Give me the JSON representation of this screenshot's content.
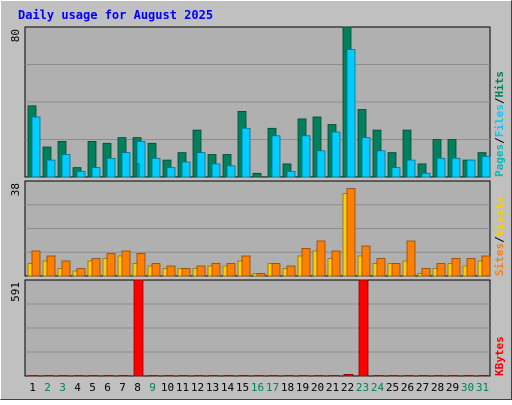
{
  "colors": {
    "background": "#c0c0c0",
    "panel": "#b0b0b0",
    "grid": "#8c8c8c",
    "title": "#0000ff",
    "hits": "#00805c",
    "files": "#00ccff",
    "pages": "#00bcbc",
    "visits": "#ffcc00",
    "sites": "#ff8000",
    "kbytes": "#ff0000",
    "weekday_label": "#000000",
    "weekend_label": "#00805c"
  },
  "chart_data": {
    "type": "bar",
    "title": "Daily usage for August 2025",
    "categories": [
      "1",
      "2",
      "3",
      "4",
      "5",
      "6",
      "7",
      "8",
      "9",
      "10",
      "11",
      "12",
      "13",
      "14",
      "15",
      "16",
      "17",
      "18",
      "19",
      "20",
      "21",
      "22",
      "23",
      "24",
      "25",
      "26",
      "27",
      "28",
      "29",
      "30",
      "31"
    ],
    "weekend_days": [
      "2",
      "3",
      "9",
      "16",
      "17",
      "23",
      "24",
      "30",
      "31"
    ],
    "panels": [
      {
        "id": "hits-files-pages",
        "max_label": "80",
        "ylim": [
          0,
          80
        ],
        "legend": [
          "Pages",
          "Files",
          "Hits"
        ],
        "series": [
          {
            "name": "Hits",
            "values": [
              38,
              16,
              19,
              5,
              19,
              18,
              21,
              21,
              18,
              9,
              13,
              25,
              12,
              12,
              35,
              2,
              26,
              7,
              31,
              32,
              28,
              80,
              36,
              25,
              13,
              25,
              7,
              20,
              20,
              9,
              13
            ]
          },
          {
            "name": "Files",
            "values": [
              32,
              9,
              12,
              3,
              5,
              10,
              13,
              19,
              10,
              5,
              8,
              13,
              7,
              6,
              26,
              0,
              22,
              3,
              22,
              14,
              24,
              68,
              21,
              14,
              5,
              9,
              2,
              10,
              10,
              9,
              11
            ]
          },
          {
            "name": "Pages",
            "values": [
              0,
              0,
              0,
              0,
              0,
              0,
              0,
              7,
              0,
              0,
              0,
              0,
              0,
              0,
              0,
              0,
              0,
              0,
              0,
              0,
              0,
              0,
              0,
              0,
              0,
              0,
              0,
              0,
              0,
              0,
              0
            ]
          }
        ]
      },
      {
        "id": "visits-sites",
        "max_label": "38",
        "ylim": [
          0,
          38
        ],
        "legend": [
          "Sites",
          "Visits"
        ],
        "series": [
          {
            "name": "Visits",
            "values": [
              5,
              6,
              3,
              2,
              6,
              7,
              8,
              5,
              4,
              3,
              3,
              3,
              4,
              4,
              6,
              1,
              5,
              3,
              8,
              10,
              7,
              33,
              8,
              5,
              5,
              6,
              1,
              3,
              5,
              4,
              6
            ]
          },
          {
            "name": "Sites",
            "values": [
              10,
              8,
              6,
              3,
              7,
              9,
              10,
              9,
              5,
              4,
              3,
              4,
              5,
              5,
              8,
              1,
              5,
              4,
              11,
              14,
              10,
              35,
              12,
              7,
              5,
              14,
              3,
              5,
              7,
              7,
              8
            ]
          }
        ]
      },
      {
        "id": "kbytes",
        "max_label": "591",
        "ylim": [
          0,
          591
        ],
        "legend": [
          "KBytes"
        ],
        "series": [
          {
            "name": "KBytes",
            "values": [
              3,
              3,
              3,
              3,
              3,
              3,
              3,
              591,
              3,
              3,
              3,
              3,
              3,
              3,
              3,
              3,
              3,
              3,
              3,
              3,
              3,
              10,
              591,
              3,
              3,
              3,
              3,
              3,
              3,
              3,
              3
            ]
          }
        ]
      }
    ]
  }
}
